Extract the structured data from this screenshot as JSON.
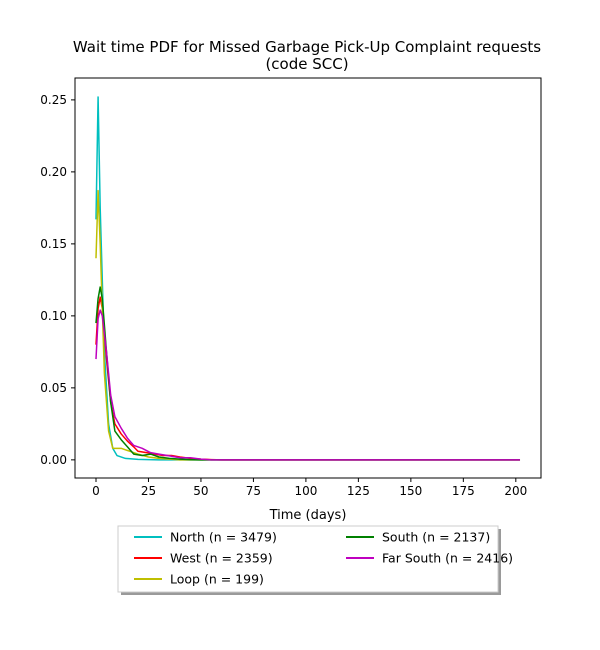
{
  "chart_data": {
    "type": "line",
    "title": "Wait time PDF for Missed Garbage Pick-Up Complaint  requests",
    "subtitle": "(code SCC)",
    "xlabel": "Time (days)",
    "ylabel": "",
    "xlim": [
      -10,
      212
    ],
    "ylim": [
      -0.0126,
      0.2652
    ],
    "xticks": [
      0,
      25,
      50,
      75,
      100,
      125,
      150,
      175,
      200
    ],
    "yticks": [
      0.0,
      0.05,
      0.1,
      0.15,
      0.2,
      0.25
    ],
    "xtick_labels": [
      "0",
      "25",
      "50",
      "75",
      "100",
      "125",
      "150",
      "175",
      "200"
    ],
    "ytick_labels": [
      "0.00",
      "0.05",
      "0.10",
      "0.15",
      "0.20",
      "0.25"
    ],
    "grid": false,
    "legend": {
      "placement": "bottom-center",
      "columns": 2
    },
    "series": [
      {
        "name": "North (n = 3479)",
        "color": "#00bfbf",
        "points": [
          [
            0,
            0.167
          ],
          [
            1,
            0.252
          ],
          [
            2,
            0.175
          ],
          [
            4,
            0.075
          ],
          [
            6,
            0.025
          ],
          [
            8,
            0.008
          ],
          [
            10,
            0.003
          ],
          [
            14,
            0.001
          ],
          [
            20,
            0.0003
          ],
          [
            30,
            0
          ],
          [
            202,
            0
          ]
        ]
      },
      {
        "name": "West (n = 2359)",
        "color": "#ff0000",
        "points": [
          [
            0,
            0.08
          ],
          [
            1,
            0.105
          ],
          [
            2,
            0.113
          ],
          [
            3,
            0.105
          ],
          [
            5,
            0.07
          ],
          [
            7,
            0.04
          ],
          [
            9,
            0.025
          ],
          [
            12,
            0.018
          ],
          [
            15,
            0.013
          ],
          [
            18,
            0.009
          ],
          [
            20,
            0.006
          ],
          [
            24,
            0.005
          ],
          [
            28,
            0.004
          ],
          [
            32,
            0.003
          ],
          [
            36,
            0.003
          ],
          [
            40,
            0.002
          ],
          [
            45,
            0.001
          ],
          [
            50,
            0.0005
          ],
          [
            55,
            0.0002
          ],
          [
            60,
            0
          ],
          [
            202,
            0
          ]
        ]
      },
      {
        "name": "Loop (n = 199)",
        "color": "#bfbf00",
        "points": [
          [
            0,
            0.14
          ],
          [
            1,
            0.187
          ],
          [
            2,
            0.15
          ],
          [
            4,
            0.06
          ],
          [
            6,
            0.02
          ],
          [
            8,
            0.008
          ],
          [
            12,
            0.008
          ],
          [
            16,
            0.006
          ],
          [
            20,
            0.004
          ],
          [
            25,
            0.002
          ],
          [
            30,
            0.001
          ],
          [
            35,
            0.0005
          ],
          [
            40,
            0
          ],
          [
            202,
            0
          ]
        ]
      },
      {
        "name": "South (n = 2137)",
        "color": "#008000",
        "points": [
          [
            0,
            0.095
          ],
          [
            1,
            0.112
          ],
          [
            2,
            0.12
          ],
          [
            3,
            0.112
          ],
          [
            5,
            0.075
          ],
          [
            7,
            0.04
          ],
          [
            9,
            0.02
          ],
          [
            12,
            0.014
          ],
          [
            15,
            0.009
          ],
          [
            18,
            0.004
          ],
          [
            22,
            0.003
          ],
          [
            26,
            0.004
          ],
          [
            30,
            0.002
          ],
          [
            35,
            0.001
          ],
          [
            40,
            0.0005
          ],
          [
            45,
            0.0002
          ],
          [
            50,
            0
          ],
          [
            202,
            0
          ]
        ]
      },
      {
        "name": "Far South (n = 2416)",
        "color": "#bf00bf",
        "points": [
          [
            0,
            0.07
          ],
          [
            1,
            0.098
          ],
          [
            2,
            0.104
          ],
          [
            3,
            0.1
          ],
          [
            5,
            0.075
          ],
          [
            7,
            0.045
          ],
          [
            9,
            0.03
          ],
          [
            12,
            0.022
          ],
          [
            15,
            0.015
          ],
          [
            18,
            0.01
          ],
          [
            22,
            0.008
          ],
          [
            26,
            0.005
          ],
          [
            30,
            0.004
          ],
          [
            34,
            0.003
          ],
          [
            40,
            0.0015
          ],
          [
            45,
            0.0015
          ],
          [
            50,
            0.0005
          ],
          [
            55,
            0
          ],
          [
            202,
            0
          ]
        ]
      }
    ]
  }
}
